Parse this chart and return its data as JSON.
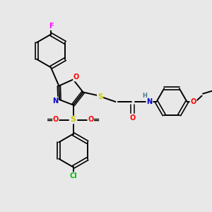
{
  "bg_color": "#e8e8e8",
  "bond_color": "#000000",
  "atom_colors": {
    "F": "#ff00ff",
    "O": "#ff0000",
    "N": "#0000cc",
    "S_thio": "#cccc00",
    "S_sulfonyl": "#cccc00",
    "Cl": "#00bb00",
    "H": "#4a7a8a",
    "C": "#000000"
  },
  "figsize": [
    3.0,
    3.0
  ],
  "dpi": 100
}
